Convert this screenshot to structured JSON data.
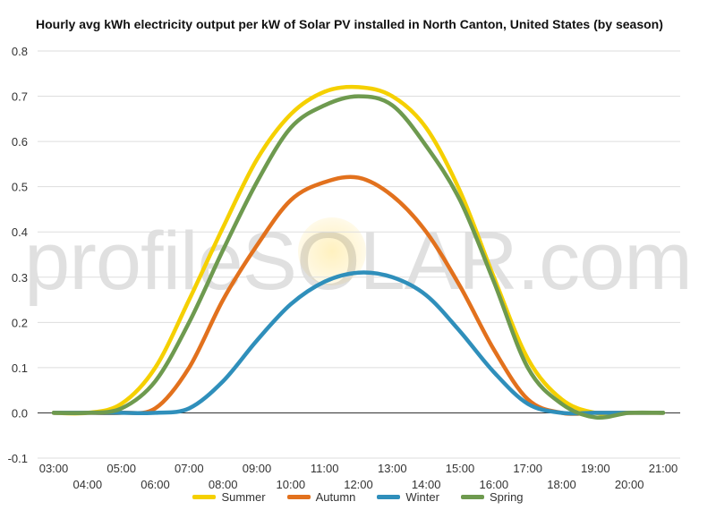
{
  "watermark": "profileSOLAR.com",
  "chart_data": {
    "type": "line",
    "title": "Hourly avg kWh electricity output per kW of Solar PV installed in North Canton, United States (by season)",
    "xlabel": "",
    "ylabel": "",
    "ylim": [
      -0.1,
      0.8
    ],
    "yticks": [
      -0.1,
      0.0,
      0.1,
      0.2,
      0.3,
      0.4,
      0.5,
      0.6,
      0.7,
      0.8
    ],
    "ytick_labels": [
      "-0.1",
      "0.0",
      "0.1",
      "0.2",
      "0.3",
      "0.4",
      "0.5",
      "0.6",
      "0.7",
      "0.8"
    ],
    "x": [
      "03:00",
      "04:00",
      "05:00",
      "06:00",
      "07:00",
      "08:00",
      "09:00",
      "10:00",
      "11:00",
      "12:00",
      "13:00",
      "14:00",
      "15:00",
      "16:00",
      "17:00",
      "18:00",
      "19:00",
      "20:00",
      "21:00"
    ],
    "grid": true,
    "legend_position": "bottom",
    "series": [
      {
        "name": "Summer",
        "color": "#f5d000",
        "values": [
          0.0,
          0.0,
          0.02,
          0.1,
          0.25,
          0.41,
          0.56,
          0.66,
          0.71,
          0.72,
          0.7,
          0.63,
          0.49,
          0.3,
          0.12,
          0.03,
          0.0,
          0.0,
          0.0
        ]
      },
      {
        "name": "Autumn",
        "color": "#e2711d",
        "values": [
          0.0,
          0.0,
          0.0,
          0.01,
          0.1,
          0.25,
          0.37,
          0.47,
          0.51,
          0.52,
          0.48,
          0.4,
          0.28,
          0.14,
          0.03,
          0.0,
          0.0,
          0.0,
          0.0
        ]
      },
      {
        "name": "Winter",
        "color": "#2f8fbb",
        "values": [
          0.0,
          0.0,
          0.0,
          0.0,
          0.01,
          0.07,
          0.16,
          0.24,
          0.29,
          0.31,
          0.3,
          0.26,
          0.18,
          0.09,
          0.02,
          0.0,
          0.0,
          0.0,
          0.0
        ]
      },
      {
        "name": "Spring",
        "color": "#6e9a4f",
        "values": [
          0.0,
          0.0,
          0.01,
          0.07,
          0.2,
          0.36,
          0.51,
          0.63,
          0.68,
          0.7,
          0.68,
          0.59,
          0.47,
          0.29,
          0.1,
          0.02,
          -0.01,
          0.0,
          0.0
        ]
      }
    ]
  }
}
